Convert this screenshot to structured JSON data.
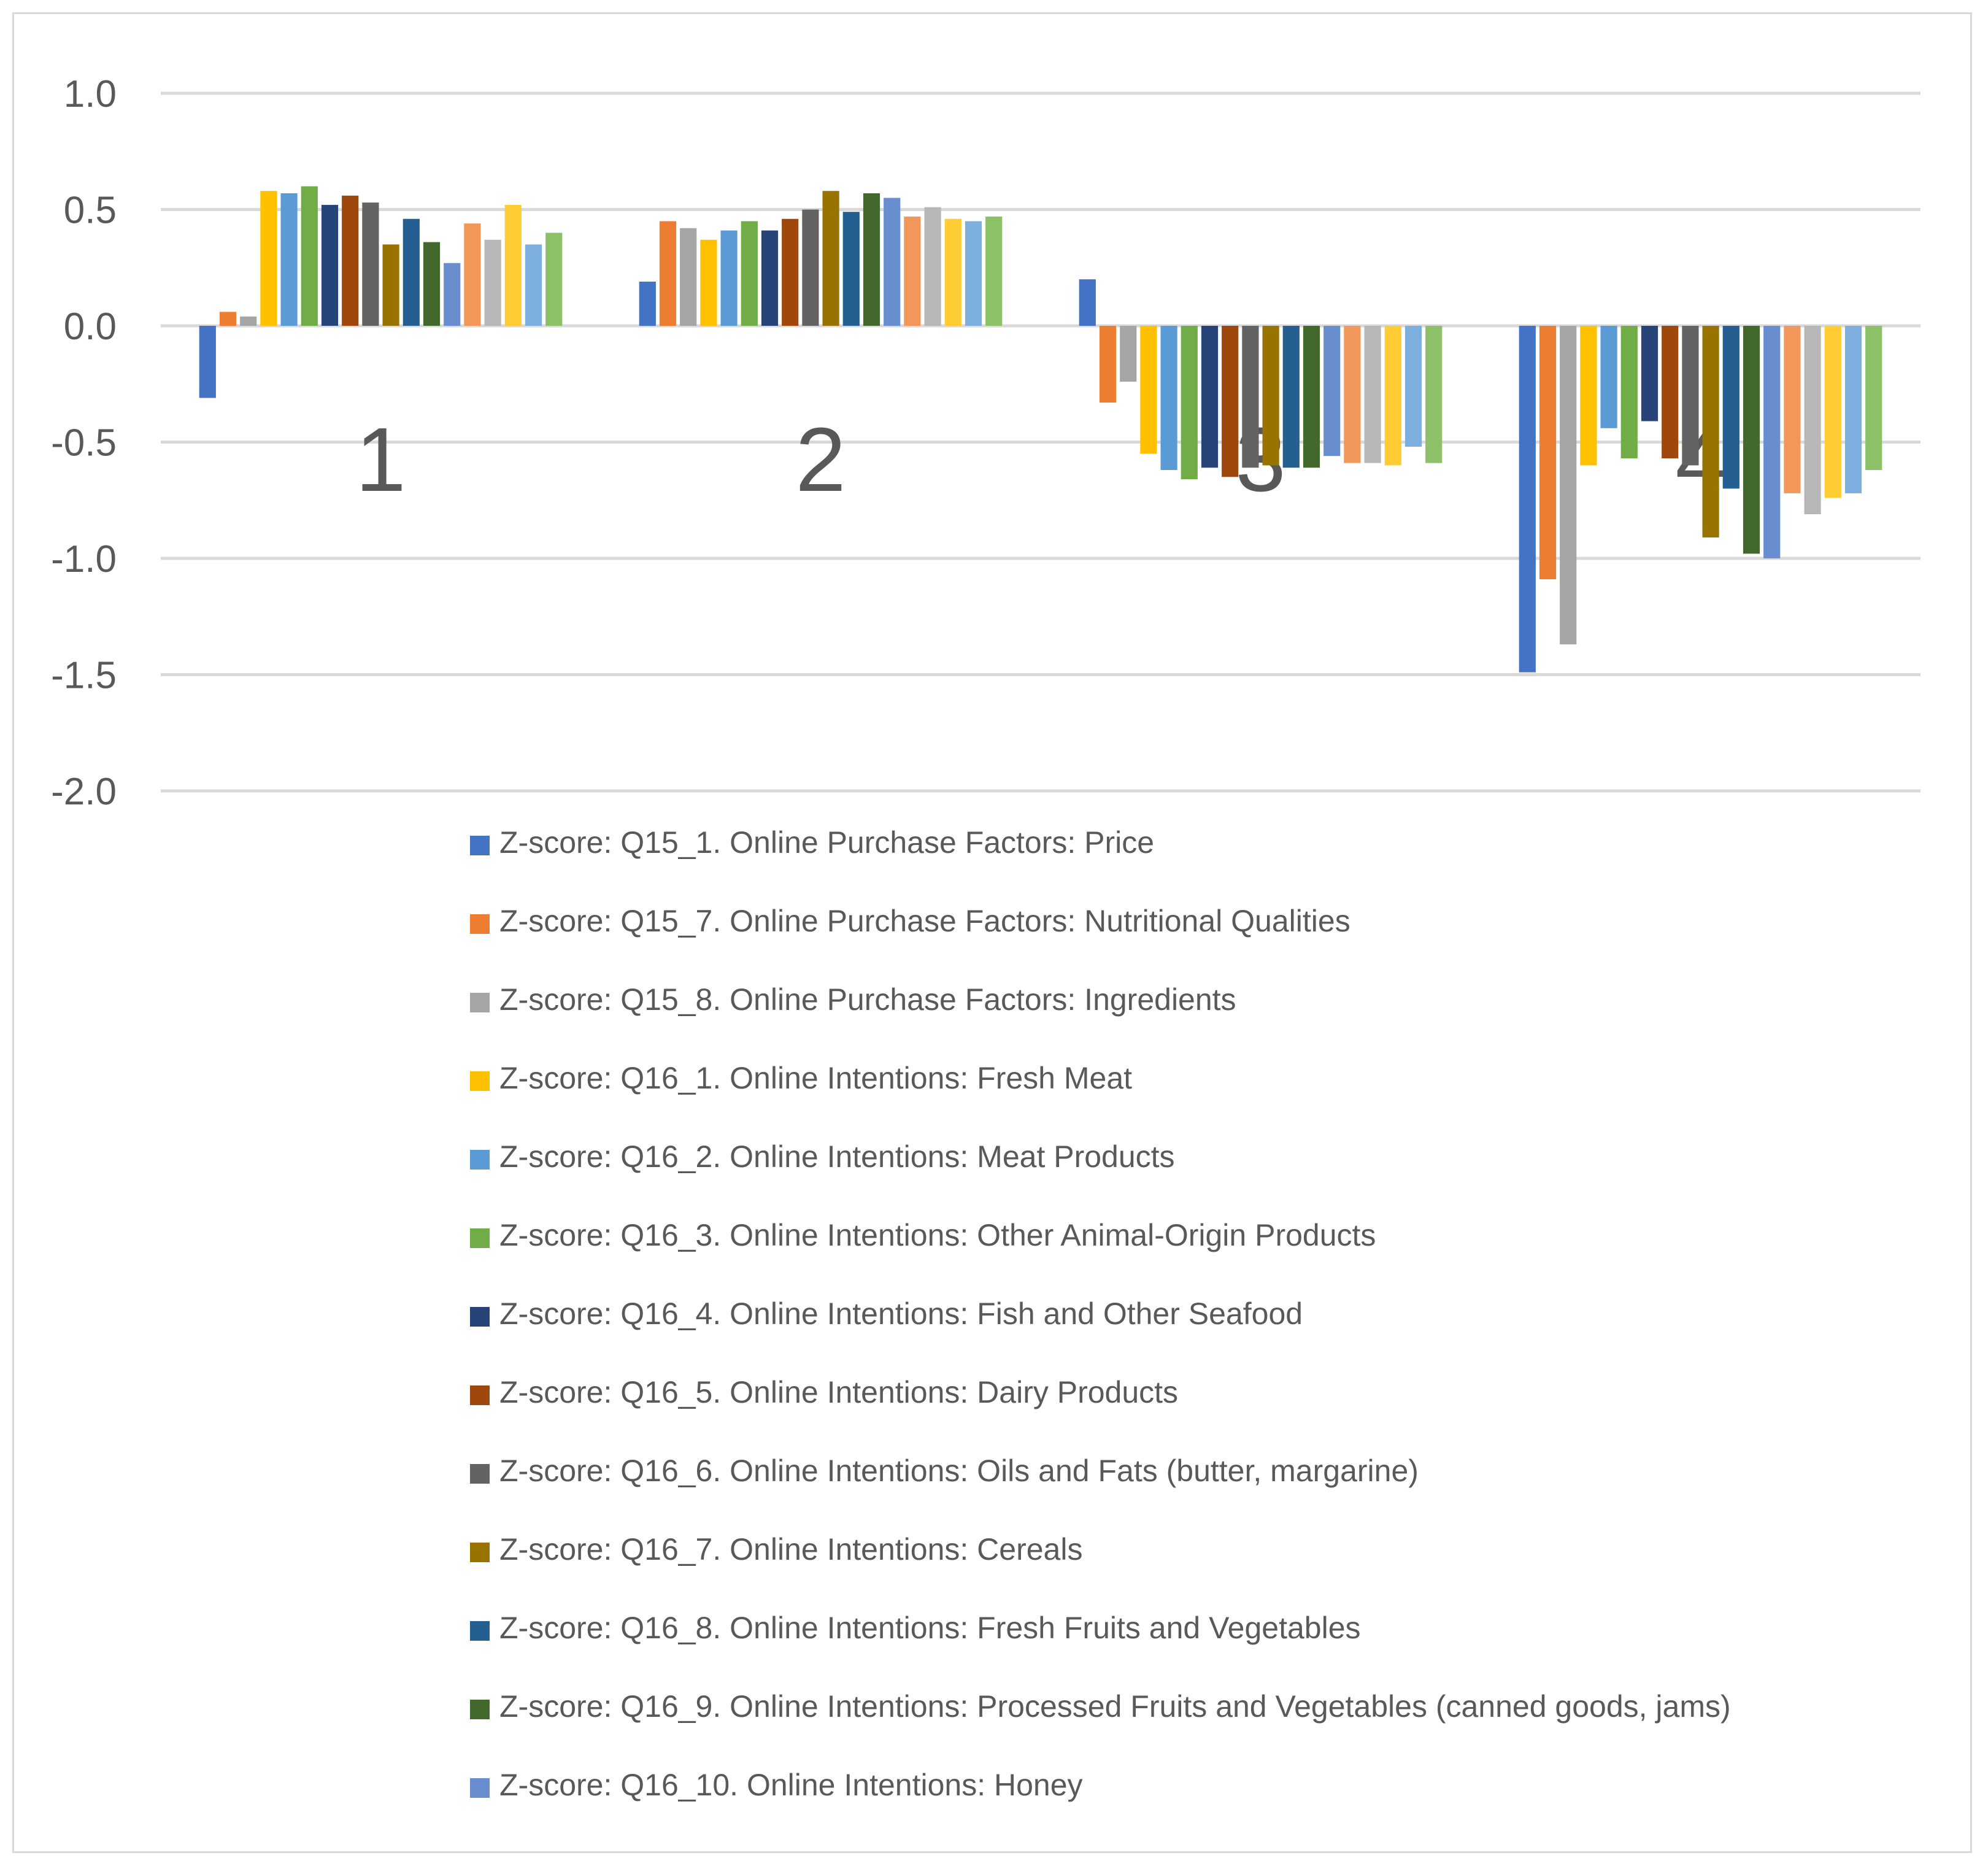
{
  "chart_data": {
    "type": "bar",
    "title": "",
    "xlabel": "",
    "ylabel": "",
    "ylim": [
      -2.0,
      1.0
    ],
    "yticks": [
      1.0,
      0.5,
      0.0,
      -0.5,
      -1.0,
      -1.5,
      -2.0
    ],
    "ytick_labels": [
      "1.0",
      "0.5",
      "0.0",
      "-0.5",
      "-1.0",
      "-1.5",
      "-2.0"
    ],
    "categories": [
      "1",
      "2",
      "3",
      "4"
    ],
    "grid": true,
    "legend_position": "bottom",
    "series": [
      {
        "name": "Z-score: Q15_1. Online Purchase Factors: Price",
        "color": "#4472C4",
        "values": [
          -0.31,
          0.19,
          0.2,
          -1.49
        ]
      },
      {
        "name": "Z-score: Q15_7. Online Purchase Factors: Nutritional Qualities",
        "color": "#ED7D31",
        "values": [
          0.06,
          0.45,
          -0.33,
          -1.09
        ]
      },
      {
        "name": "Z-score: Q15_8. Online Purchase Factors: Ingredients",
        "color": "#A5A5A5",
        "values": [
          0.04,
          0.42,
          -0.24,
          -1.37
        ]
      },
      {
        "name": "Z-score: Q16_1. Online Intentions: Fresh Meat",
        "color": "#FFC000",
        "values": [
          0.58,
          0.37,
          -0.55,
          -0.6
        ]
      },
      {
        "name": "Z-score: Q16_2. Online Intentions: Meat Products",
        "color": "#5B9BD5",
        "values": [
          0.57,
          0.41,
          -0.62,
          -0.44
        ]
      },
      {
        "name": "Z-score: Q16_3. Online Intentions: Other Animal-Origin Products",
        "color": "#70AD47",
        "values": [
          0.6,
          0.45,
          -0.66,
          -0.57
        ]
      },
      {
        "name": "Z-score: Q16_4. Online Intentions: Fish and Other Seafood",
        "color": "#264478",
        "values": [
          0.52,
          0.41,
          -0.61,
          -0.41
        ]
      },
      {
        "name": "Z-score: Q16_5. Online Intentions: Dairy Products",
        "color": "#9E480E",
        "values": [
          0.56,
          0.46,
          -0.65,
          -0.57
        ]
      },
      {
        "name": "Z-score: Q16_6. Online Intentions: Oils and Fats (butter, margarine)",
        "color": "#636363",
        "values": [
          0.53,
          0.5,
          -0.61,
          -0.6
        ]
      },
      {
        "name": "Z-score: Q16_7. Online Intentions: Cereals",
        "color": "#997300",
        "values": [
          0.35,
          0.58,
          -0.6,
          -0.91
        ]
      },
      {
        "name": "Z-score: Q16_8. Online Intentions: Fresh Fruits and Vegetables",
        "color": "#255E91",
        "values": [
          0.46,
          0.49,
          -0.61,
          -0.7
        ]
      },
      {
        "name": "Z-score: Q16_9. Online Intentions: Processed Fruits and Vegetables (canned goods, jams)",
        "color": "#43682B",
        "values": [
          0.36,
          0.57,
          -0.61,
          -0.98
        ]
      },
      {
        "name": "Z-score: Q16_10. Online Intentions: Honey",
        "color": "#698ED0",
        "values": [
          0.27,
          0.55,
          -0.56,
          -1.0
        ]
      },
      {
        "name": "",
        "color": "#F1975A",
        "values": [
          0.44,
          0.47,
          -0.59,
          -0.72
        ]
      },
      {
        "name": "",
        "color": "#B7B7B7",
        "values": [
          0.37,
          0.51,
          -0.59,
          -0.81
        ]
      },
      {
        "name": "",
        "color": "#FFCD33",
        "values": [
          0.52,
          0.46,
          -0.6,
          -0.74
        ]
      },
      {
        "name": "",
        "color": "#7CAFDD",
        "values": [
          0.35,
          0.45,
          -0.52,
          -0.72
        ]
      },
      {
        "name": "",
        "color": "#8CC168",
        "values": [
          0.4,
          0.47,
          -0.59,
          -0.62
        ]
      }
    ]
  }
}
